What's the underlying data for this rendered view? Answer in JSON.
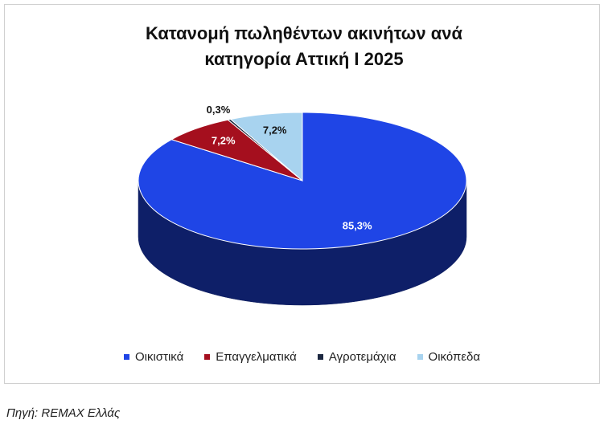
{
  "chart_data": {
    "type": "pie3d",
    "title": "Κατανομή πωληθέντων ακινήτων ανά κατηγορία Αττική Ι 2025",
    "categories": [
      "Οικιστικά",
      "Επαγγελματικά",
      "Αγροτεμάχια",
      "Οικόπεδα"
    ],
    "values": [
      85.3,
      7.2,
      0.3,
      7.2
    ],
    "value_labels": [
      "85,3%",
      "7,2%",
      "0,3%",
      "7,2%"
    ],
    "colors": [
      "#1f45e6",
      "#a50f1e",
      "#1c2841",
      "#a8d3ef"
    ],
    "legend": "bottom",
    "source": "Πηγή: REMAX Ελλάς"
  }
}
